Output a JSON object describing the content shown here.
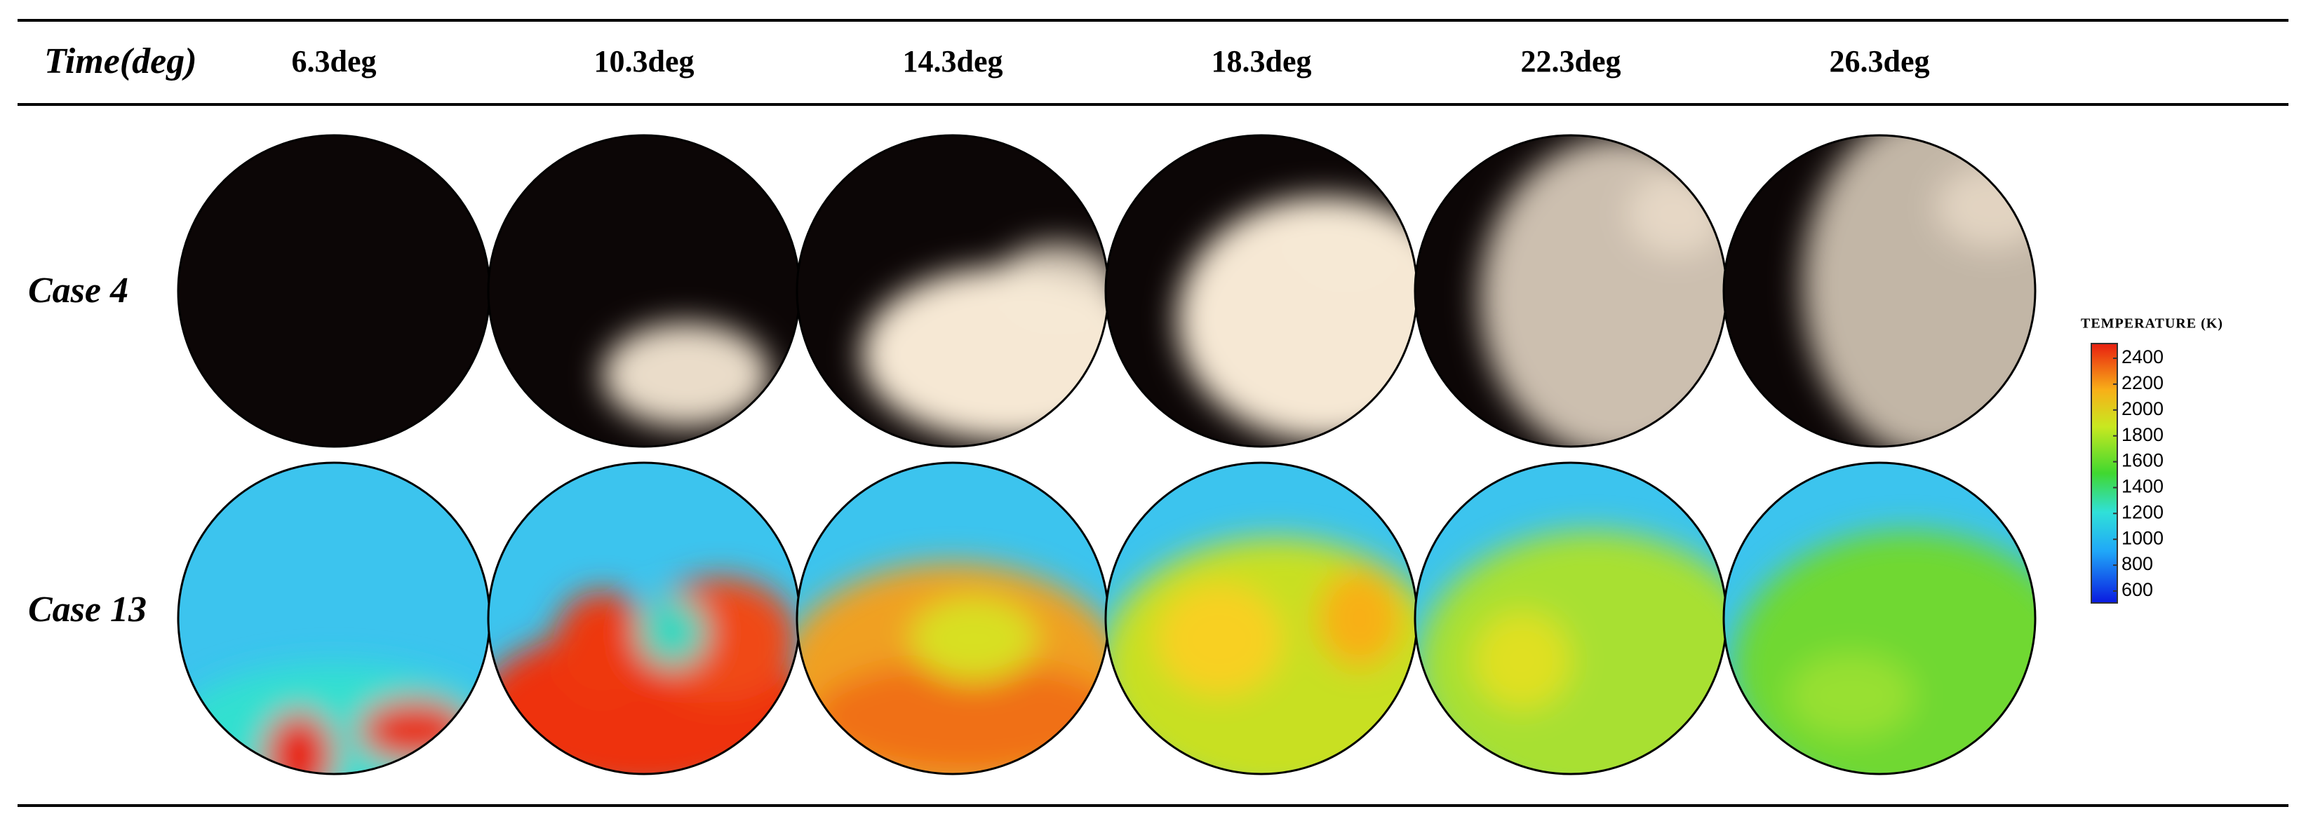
{
  "header": {
    "label": "Time(deg)",
    "times": [
      "6.3deg",
      "10.3deg",
      "14.3deg",
      "18.3deg",
      "22.3deg",
      "26.3deg"
    ]
  },
  "rows": [
    {
      "label": "Case 4"
    },
    {
      "label": "Case 13"
    }
  ],
  "colorbar": {
    "title": "TEMPERATURE (K)",
    "ticks": [
      2400,
      2200,
      2000,
      1800,
      1600,
      1400,
      1200,
      1000,
      800,
      600
    ]
  }
}
